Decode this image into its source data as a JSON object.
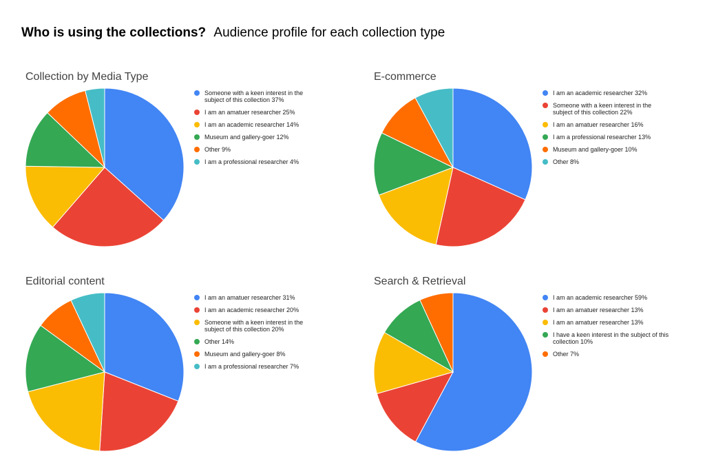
{
  "page": {
    "title_bold": "Who is using the collections?",
    "title_rest": "Audience profile for each collection type"
  },
  "colors": {
    "blue": "#4285F4",
    "red": "#EA4335",
    "yellow": "#FBBC04",
    "green": "#34A853",
    "orange": "#FF6D01",
    "teal": "#46BDC6"
  },
  "chart_data": [
    {
      "type": "pie",
      "title": "Collection by Media Type",
      "legend_position": "right",
      "slices": [
        {
          "label": "Someone with a keen interest in the subject of this collection 37%",
          "value": 37,
          "color": "#4285F4"
        },
        {
          "label": "I am an amatuer researcher 25%",
          "value": 25,
          "color": "#EA4335"
        },
        {
          "label": "I am an academic researcher 14%",
          "value": 14,
          "color": "#FBBC04"
        },
        {
          "label": "Museum and gallery-goer 12%",
          "value": 12,
          "color": "#34A853"
        },
        {
          "label": "Other 9%",
          "value": 9,
          "color": "#FF6D01"
        },
        {
          "label": "I am a professional researcher 4%",
          "value": 4,
          "color": "#46BDC6"
        }
      ]
    },
    {
      "type": "pie",
      "title": "E-commerce",
      "legend_position": "right",
      "slices": [
        {
          "label": "I am an academic researcher 32%",
          "value": 32,
          "color": "#4285F4"
        },
        {
          "label": "Someone with a keen interest in the subject of this collection 22%",
          "value": 22,
          "color": "#EA4335"
        },
        {
          "label": "I am an amatuer researcher 16%",
          "value": 16,
          "color": "#FBBC04"
        },
        {
          "label": "I am a professional researcher 13%",
          "value": 13,
          "color": "#34A853"
        },
        {
          "label": "Museum and gallery-goer 10%",
          "value": 10,
          "color": "#FF6D01"
        },
        {
          "label": "Other 8%",
          "value": 8,
          "color": "#46BDC6"
        }
      ]
    },
    {
      "type": "pie",
      "title": "Editorial content",
      "legend_position": "right",
      "slices": [
        {
          "label": "I am an amatuer researcher 31%",
          "value": 31,
          "color": "#4285F4"
        },
        {
          "label": "I am an academic researcher 20%",
          "value": 20,
          "color": "#EA4335"
        },
        {
          "label": "Someone with a keen interest in the subject of this collection 20%",
          "value": 20,
          "color": "#FBBC04"
        },
        {
          "label": "Other 14%",
          "value": 14,
          "color": "#34A853"
        },
        {
          "label": "Museum and gallery-goer 8%",
          "value": 8,
          "color": "#FF6D01"
        },
        {
          "label": "I am a professional researcher 7%",
          "value": 7,
          "color": "#46BDC6"
        }
      ]
    },
    {
      "type": "pie",
      "title": "Search & Retrieval",
      "legend_position": "right",
      "slices": [
        {
          "label": "I am an academic researcher 59%",
          "value": 59,
          "color": "#4285F4"
        },
        {
          "label": "I am an amatuer researcher 13%",
          "value": 13,
          "color": "#EA4335"
        },
        {
          "label": "I am an amatuer researcher 13%",
          "value": 13,
          "color": "#FBBC04"
        },
        {
          "label": "I have a keen interest in the subject of this collection 10%",
          "value": 10,
          "color": "#34A853"
        },
        {
          "label": "Other 7%",
          "value": 7,
          "color": "#FF6D01"
        }
      ]
    }
  ]
}
